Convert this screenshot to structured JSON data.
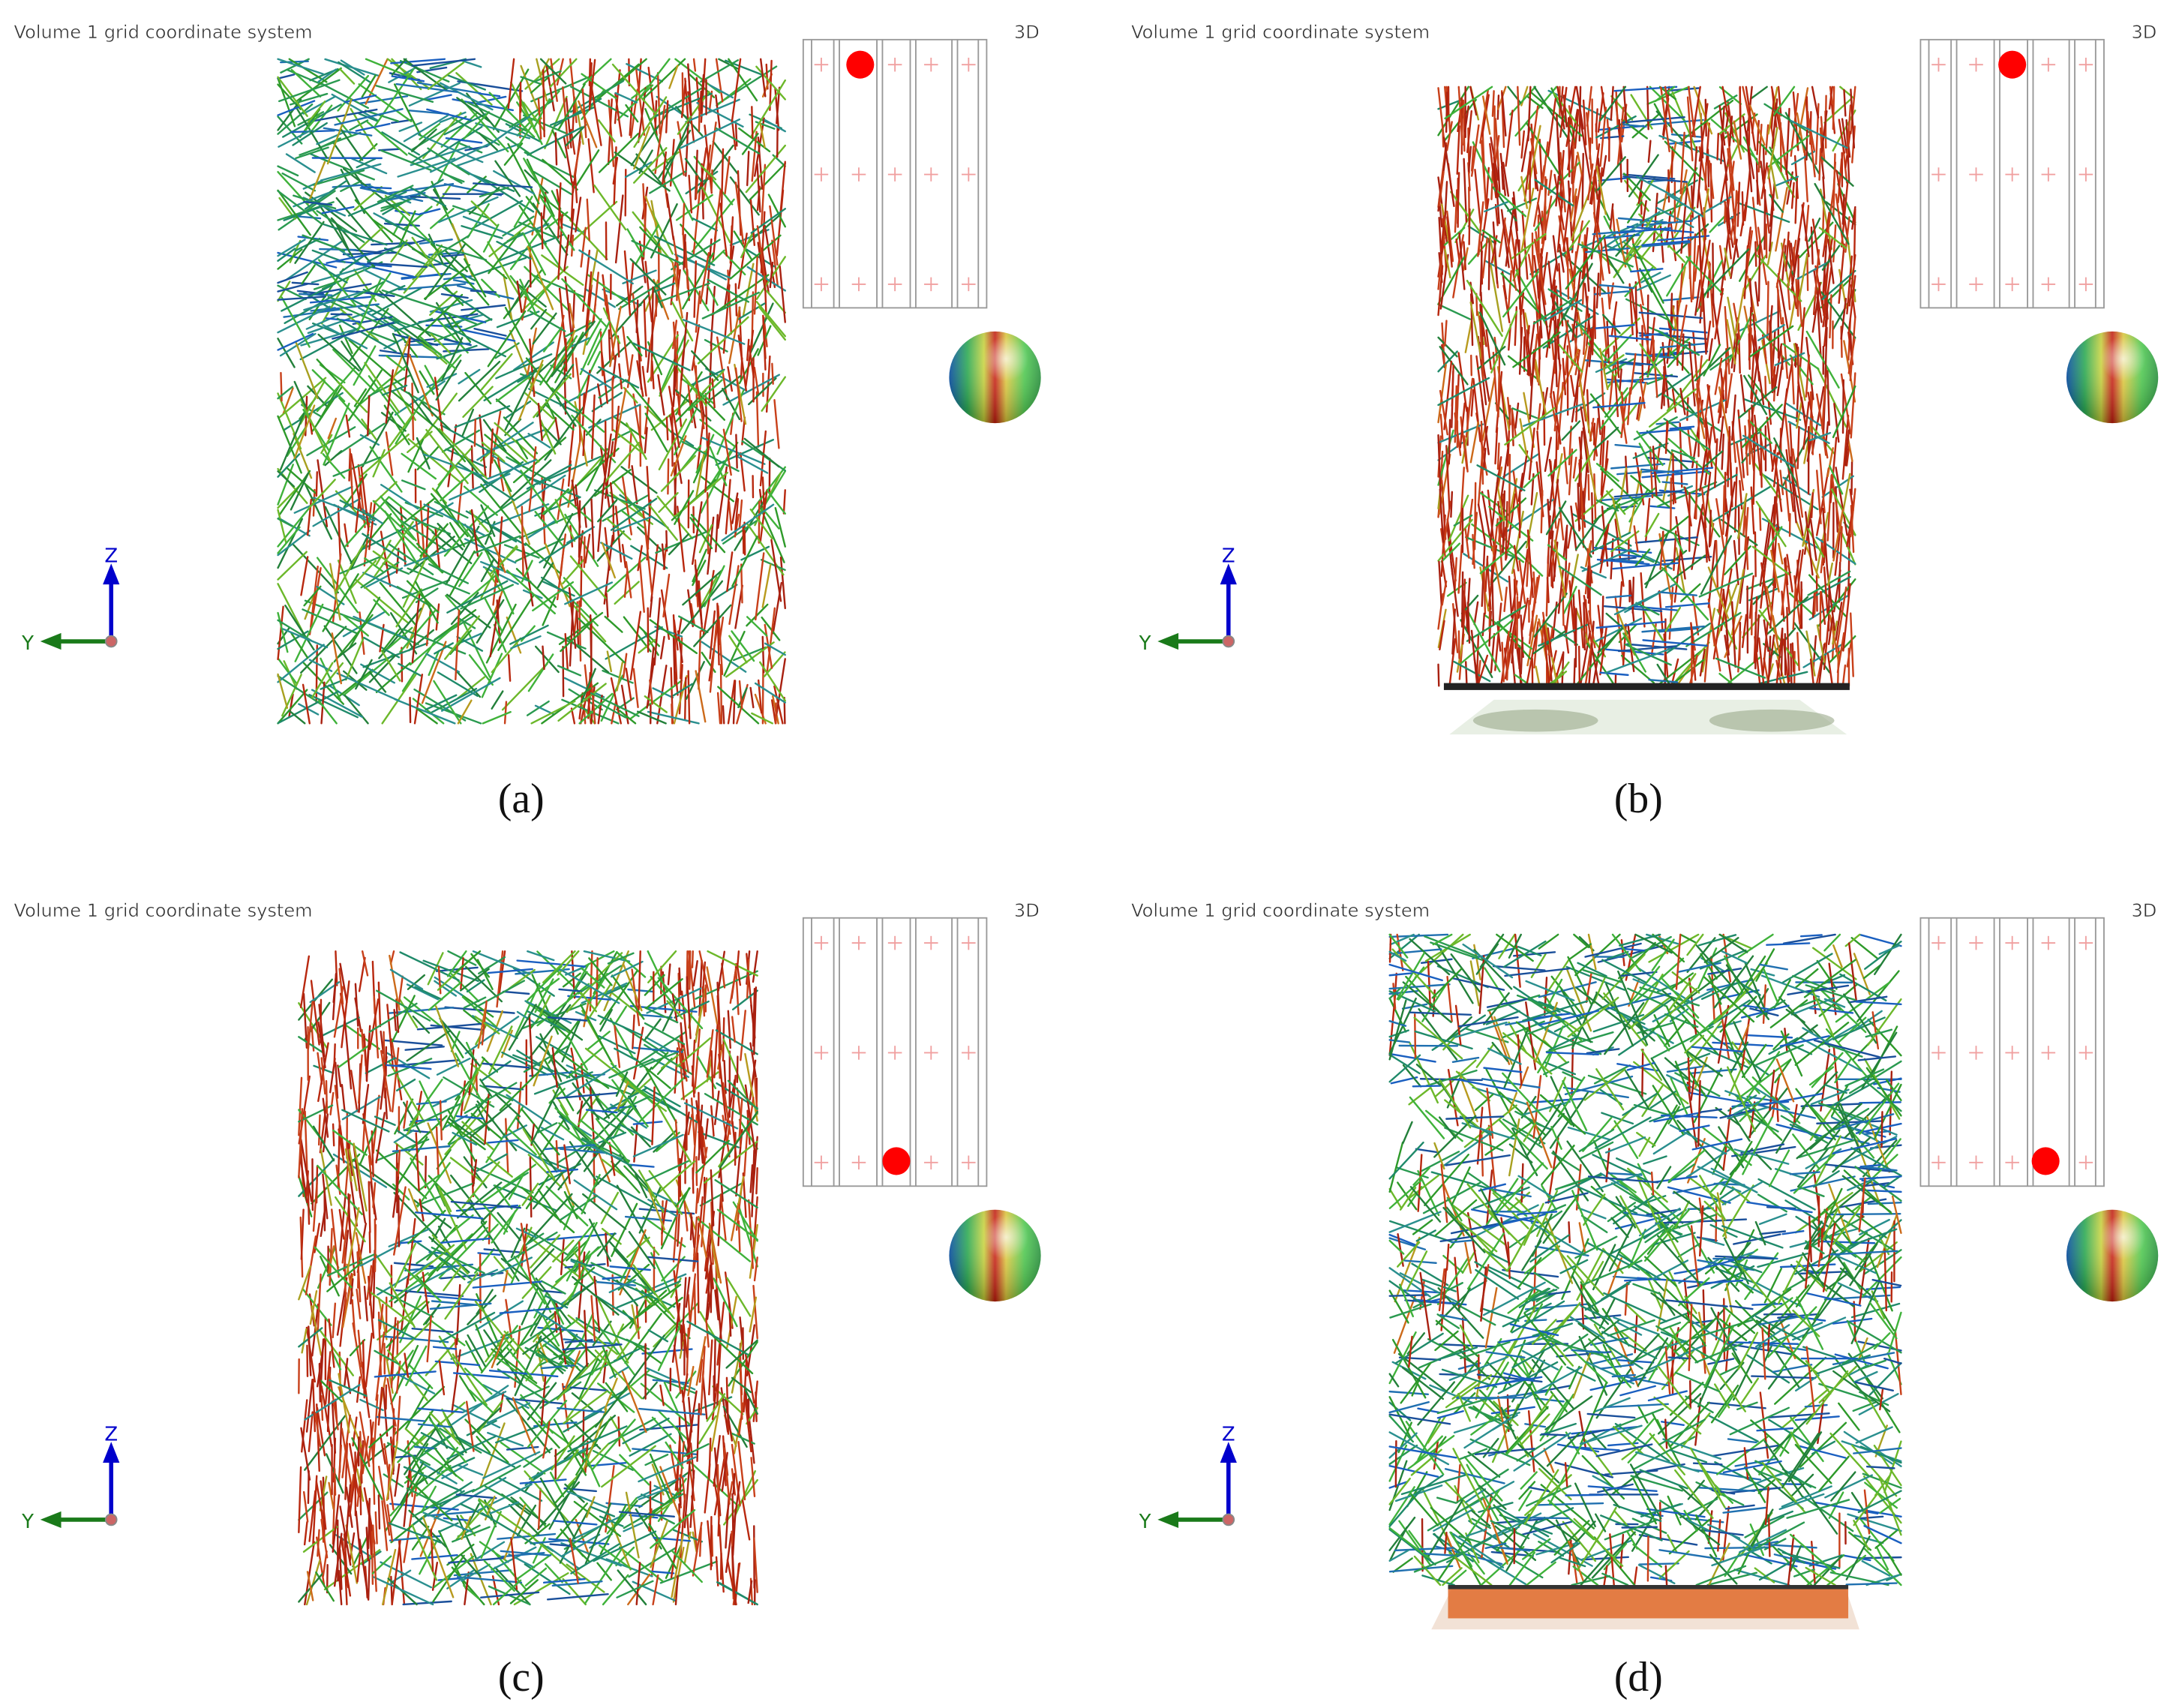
{
  "panels": [
    {
      "header": "Volume 1 grid coordinate system",
      "view": "3D",
      "axis_z": "Z",
      "axis_y": "Y",
      "caption": "(a)"
    },
    {
      "header": "Volume 1 grid coordinate system",
      "view": "3D",
      "axis_z": "Z",
      "axis_y": "Y",
      "caption": "(b)"
    },
    {
      "header": "Volume 1 grid coordinate system",
      "view": "3D",
      "axis_z": "Z",
      "axis_y": "Y",
      "caption": "(c)"
    },
    {
      "header": "Volume 1 grid coordinate system",
      "view": "3D",
      "axis_z": "Z",
      "axis_y": "Y",
      "caption": "(d)"
    }
  ]
}
